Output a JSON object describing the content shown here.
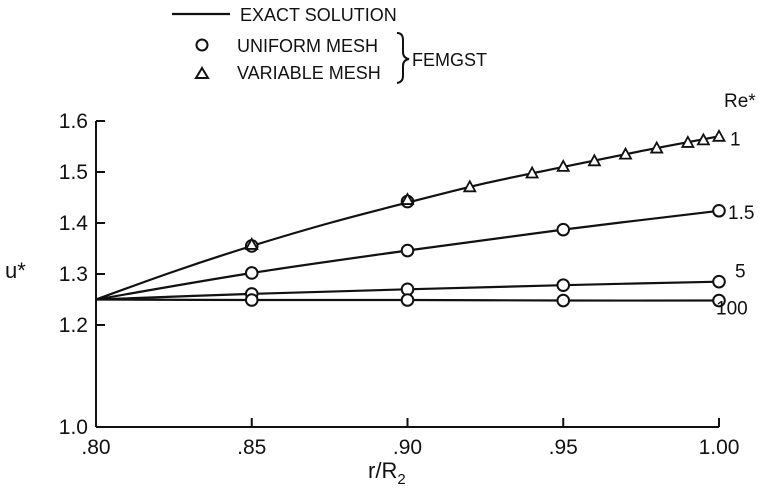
{
  "legend": {
    "exact_label": "EXACT SOLUTION",
    "uniform_label": "UNIFORM MESH",
    "variable_label": "VARIABLE MESH",
    "group_label": "FEMGST"
  },
  "chart_data": {
    "type": "line",
    "xlabel": "r/R",
    "xlabel_sub": "2",
    "ylabel": "u*",
    "re_header": "Re*",
    "xlim": [
      0.8,
      1.0
    ],
    "ylim": [
      1.0,
      1.6
    ],
    "x_ticks": [
      0.8,
      0.85,
      0.9,
      0.95,
      1.0
    ],
    "x_tick_labels": [
      ".80",
      ".85",
      ".90",
      ".95",
      "1.00"
    ],
    "y_ticks": [
      1.0,
      1.2,
      1.3,
      1.4,
      1.5,
      1.6
    ],
    "y_tick_labels": [
      "1.0",
      "1.2",
      "1.3",
      "1.4",
      "1.5",
      "1.6"
    ],
    "series": [
      {
        "name": "1",
        "exact": {
          "x": [
            0.8,
            0.825,
            0.85,
            0.875,
            0.9,
            0.925,
            0.95,
            0.975,
            1.0
          ],
          "y": [
            1.25,
            1.305,
            1.355,
            1.4,
            1.44,
            1.478,
            1.51,
            1.541,
            1.57
          ]
        },
        "uniform": {
          "x": [
            0.85,
            0.9
          ],
          "y": [
            1.355,
            1.442
          ]
        },
        "variable": {
          "x": [
            0.85,
            0.9,
            0.92,
            0.94,
            0.95,
            0.96,
            0.97,
            0.98,
            0.99,
            0.995,
            1.0
          ],
          "y": [
            1.357,
            1.445,
            1.47,
            1.497,
            1.51,
            1.521,
            1.534,
            1.546,
            1.557,
            1.562,
            1.569
          ]
        }
      },
      {
        "name": "1.5",
        "exact": {
          "x": [
            0.8,
            0.85,
            0.9,
            0.95,
            1.0
          ],
          "y": [
            1.25,
            1.302,
            1.346,
            1.387,
            1.424
          ]
        },
        "uniform": {
          "x": [
            0.85,
            0.9,
            0.95,
            1.0
          ],
          "y": [
            1.302,
            1.346,
            1.387,
            1.424
          ]
        }
      },
      {
        "name": "5",
        "exact": {
          "x": [
            0.8,
            0.85,
            0.9,
            0.95,
            1.0
          ],
          "y": [
            1.25,
            1.261,
            1.27,
            1.278,
            1.285
          ]
        },
        "uniform": {
          "x": [
            0.85,
            0.9,
            0.95,
            1.0
          ],
          "y": [
            1.261,
            1.27,
            1.278,
            1.285
          ]
        }
      },
      {
        "name": "100",
        "exact": {
          "x": [
            0.8,
            0.85,
            0.9,
            0.95,
            1.0
          ],
          "y": [
            1.25,
            1.249,
            1.249,
            1.248,
            1.248
          ]
        },
        "uniform": {
          "x": [
            0.85,
            0.9,
            0.95,
            1.0
          ],
          "y": [
            1.249,
            1.249,
            1.248,
            1.248
          ]
        }
      }
    ]
  }
}
